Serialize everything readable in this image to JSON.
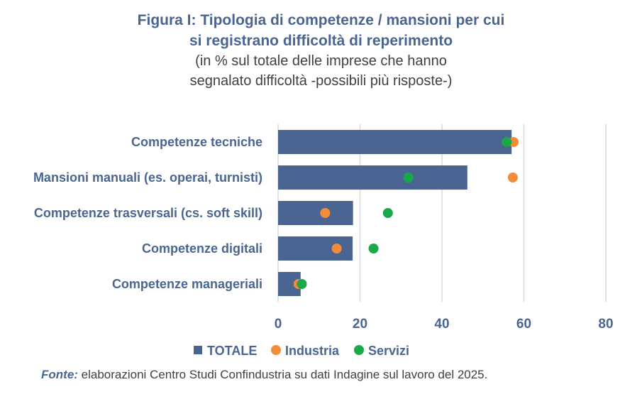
{
  "title": {
    "line1": "Figura I: Tipologia di competenze / mansioni per cui",
    "line2": "si registrano difficoltà di reperimento"
  },
  "subtitle": {
    "line1": "(in % sul totale delle imprese che hanno",
    "line2": "segnalato difficoltà -possibili più risposte-)"
  },
  "source": {
    "label": "Fonte:",
    "text": " elaborazioni Centro Studi Confindustria su dati Indagine sul lavoro del 2025."
  },
  "colors": {
    "bar": "#4a6591",
    "industria": "#f28c38",
    "servizi": "#1aa84a",
    "grid": "#d9d9d9",
    "label": "#4a6591"
  },
  "chart_data": {
    "type": "bar",
    "orientation": "horizontal",
    "categories": [
      "Competenze tecniche",
      "Mansioni manuali (es. operai, turnisti)",
      "Competenze trasversali (cs. soft skill)",
      "Competenze digitali",
      "Competenze manageriali"
    ],
    "series": [
      {
        "name": "TOTALE",
        "kind": "bar",
        "values": [
          57,
          46.2,
          18.3,
          18.2,
          5.5
        ]
      },
      {
        "name": "Industria",
        "kind": "dot",
        "values": [
          57.5,
          57.3,
          11.5,
          14.3,
          5
        ]
      },
      {
        "name": "Servizi",
        "kind": "dot",
        "values": [
          55.8,
          31.8,
          26.8,
          23.3,
          5.8
        ]
      }
    ],
    "xlim": [
      0,
      80
    ],
    "xticks": [
      0,
      20,
      40,
      60,
      80
    ],
    "grid": true,
    "legend": "bottom"
  }
}
